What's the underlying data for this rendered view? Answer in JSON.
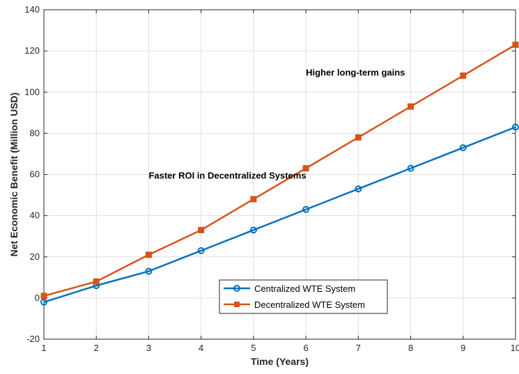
{
  "chart_data": {
    "type": "line",
    "xlabel": "Time (Years)",
    "ylabel": "Net Economic Benefit (Million USD)",
    "xlim": [
      1,
      10
    ],
    "ylim": [
      -20,
      140
    ],
    "xticks": [
      1,
      2,
      3,
      4,
      5,
      6,
      7,
      8,
      9,
      10
    ],
    "yticks": [
      -20,
      0,
      20,
      40,
      60,
      80,
      100,
      120,
      140
    ],
    "grid": true,
    "legend_position": "bottom-center",
    "x": [
      1,
      2,
      3,
      4,
      5,
      6,
      7,
      8,
      9,
      10
    ],
    "series": [
      {
        "name": "Centralized WTE System",
        "values": [
          -2,
          6,
          13,
          23,
          33,
          43,
          53,
          63,
          73,
          83
        ],
        "color": "#0072BD",
        "marker": "circle"
      },
      {
        "name": "Decentralized WTE System",
        "values": [
          1,
          8,
          21,
          33,
          48,
          63,
          78,
          93,
          108,
          123
        ],
        "color": "#D95319",
        "marker": "square"
      }
    ],
    "annotations": [
      {
        "text": "Higher long-term gains",
        "x": 6,
        "y": 108
      },
      {
        "text": "Faster ROI in Decentralized Systems",
        "x": 3,
        "y": 58
      }
    ]
  }
}
